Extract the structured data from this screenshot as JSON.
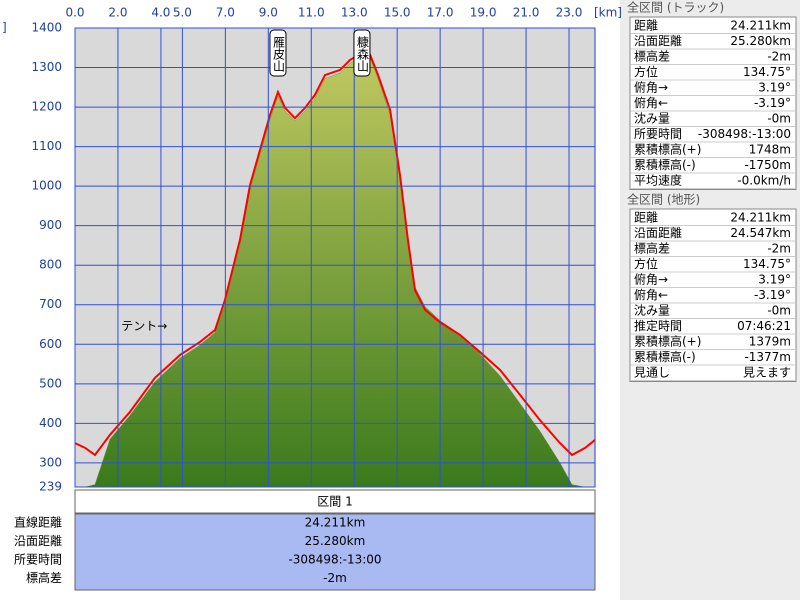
{
  "chart_data": {
    "type": "area",
    "x_unit": "[km]",
    "y_unit": "]",
    "x": [
      0,
      0.47,
      0.93,
      1.63,
      2.56,
      3.72,
      4.89,
      5.82,
      6.52,
      6.98,
      7.68,
      8.15,
      8.61,
      9.08,
      9.45,
      9.78,
      10.24,
      10.71,
      11.17,
      11.64,
      12.34,
      12.8,
      13.36,
      13.74,
      14.11,
      14.67,
      15.13,
      15.5,
      15.83,
      16.3,
      16.99,
      17.92,
      18.86,
      19.79,
      20.72,
      21.65,
      22.58,
      23.14,
      23.75,
      24.21
    ],
    "series": [
      {
        "type": "area",
        "color": "#5c9a2a",
        "values": [
          239,
          239,
          245,
          360,
          420,
          505,
          565,
          598,
          630,
          700,
          850,
          990,
          1080,
          1168,
          1228,
          1190,
          1165,
          1190,
          1222,
          1272,
          1286,
          1310,
          1330,
          1325,
          1272,
          1180,
          1020,
          860,
          745,
          695,
          660,
          625,
          575,
          520,
          450,
          380,
          300,
          245,
          239,
          239
        ]
      },
      {
        "type": "line",
        "color": "#ff0000",
        "values": [
          350,
          338,
          320,
          371,
          429,
          515,
          573,
          606,
          636,
          712,
          864,
          1003,
          1091,
          1180,
          1238,
          1198,
          1172,
          1198,
          1231,
          1281,
          1294,
          1319,
          1337,
          1332,
          1281,
          1193,
          1028,
          864,
          737,
          687,
          656,
          624,
          580,
          535,
          472,
          408,
          350,
          320,
          338,
          358
        ]
      }
    ],
    "xlim": [
      0,
      24.21
    ],
    "ylim": [
      239,
      1400
    ],
    "xticks": [
      {
        "value": 0,
        "label": "0.0"
      },
      {
        "value": 2,
        "label": "2.0"
      },
      {
        "value": 4,
        "label": "4.0"
      },
      {
        "value": 5,
        "label": "5.0"
      },
      {
        "value": 7,
        "label": "7.0"
      },
      {
        "value": 9,
        "label": "9.0"
      },
      {
        "value": 11,
        "label": "11.0"
      },
      {
        "value": 13,
        "label": "13.0"
      },
      {
        "value": 15,
        "label": "15.0"
      },
      {
        "value": 17,
        "label": "17.0"
      },
      {
        "value": 19,
        "label": "19.0"
      },
      {
        "value": 21,
        "label": "21.0"
      },
      {
        "value": 23,
        "label": "23.0"
      }
    ],
    "yticks": [
      239,
      300,
      400,
      500,
      600,
      700,
      800,
      900,
      1000,
      1100,
      1200,
      1300,
      1400
    ],
    "grid": true,
    "annotations": [
      {
        "text": "雁皮山",
        "x": 9.45,
        "vertical": true
      },
      {
        "text": "糠森山",
        "x": 13.36,
        "vertical": true
      },
      {
        "text": "テント→",
        "x": 4.3,
        "y": 645,
        "vertical": false
      }
    ]
  },
  "track_panel": {
    "title": "全区間 (トラック)",
    "rows": [
      [
        "距離",
        "24.211km"
      ],
      [
        "沿面距離",
        "25.280km"
      ],
      [
        "標高差",
        "-2m"
      ],
      [
        "方位",
        "134.75°"
      ],
      [
        "俯角→",
        "3.19°"
      ],
      [
        "俯角←",
        "-3.19°"
      ],
      [
        "沈み量",
        "-0m"
      ],
      [
        "所要時間",
        "-308498:-13:00"
      ],
      [
        "累積標高(+)",
        "1748m"
      ],
      [
        "累積標高(-)",
        "-1750m"
      ],
      [
        "平均速度",
        "-0.0km/h"
      ]
    ]
  },
  "terrain_panel": {
    "title": "全区間 (地形)",
    "rows": [
      [
        "距離",
        "24.211km"
      ],
      [
        "沿面距離",
        "24.547km"
      ],
      [
        "標高差",
        "-2m"
      ],
      [
        "方位",
        "134.75°"
      ],
      [
        "俯角→",
        "3.19°"
      ],
      [
        "俯角←",
        "-3.19°"
      ],
      [
        "沈み量",
        "-0m"
      ],
      [
        "推定時間",
        "07:46:21"
      ],
      [
        "累積標高(+)",
        "1379m"
      ],
      [
        "累積標高(-)",
        "-1377m"
      ],
      [
        "見通し",
        "見えます"
      ]
    ]
  },
  "section": {
    "title": "区間 1",
    "rows": [
      [
        "直線距離",
        "24.211km"
      ],
      [
        "沿面距離",
        "25.280km"
      ],
      [
        "所要時間",
        "-308498:-13:00"
      ],
      [
        "標高差",
        "-2m"
      ]
    ]
  }
}
